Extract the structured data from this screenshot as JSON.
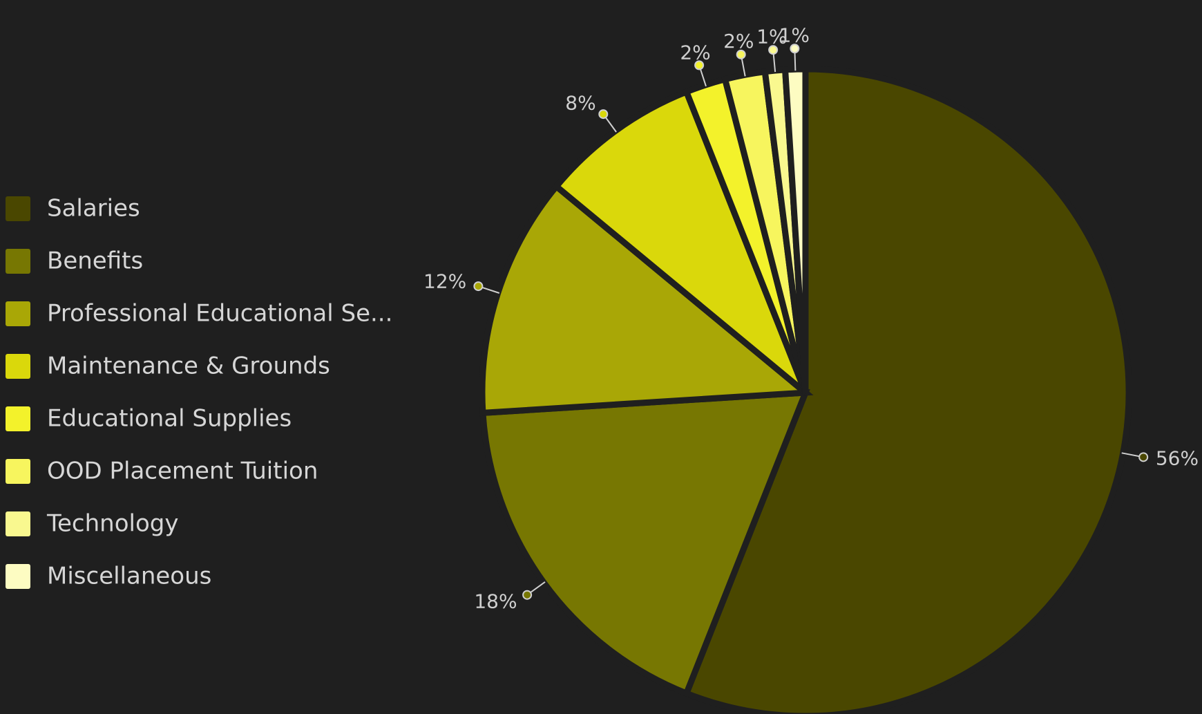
{
  "chart_data": {
    "type": "pie",
    "legend_placement": "left",
    "slices": [
      {
        "name": "Salaries",
        "display_name": "Salaries",
        "value": 56,
        "label": "56%",
        "color": "#4a4700"
      },
      {
        "name": "Benefits",
        "display_name": "Benefits",
        "value": 18,
        "label": "18%",
        "color": "#777702"
      },
      {
        "name": "Professional Educational Services",
        "display_name": "Professional Educational Se...",
        "value": 12,
        "label": "12%",
        "color": "#a9a706"
      },
      {
        "name": "Maintenance & Grounds",
        "display_name": "Maintenance & Grounds",
        "value": 8,
        "label": "8%",
        "color": "#dad80b"
      },
      {
        "name": "Educational Supplies",
        "display_name": "Educational Supplies",
        "value": 2,
        "label": "2%",
        "color": "#f3f22b"
      },
      {
        "name": "OOD Placement Tuition",
        "display_name": "OOD Placement Tuition",
        "value": 2,
        "label": "2%",
        "color": "#f7f55e"
      },
      {
        "name": "Technology",
        "display_name": "Technology",
        "value": 1,
        "label": "1%",
        "color": "#f9f88f"
      },
      {
        "name": "Miscellaneous",
        "display_name": "Miscellaneous",
        "value": 1,
        "label": "1%",
        "color": "#fdfcc2"
      }
    ]
  }
}
